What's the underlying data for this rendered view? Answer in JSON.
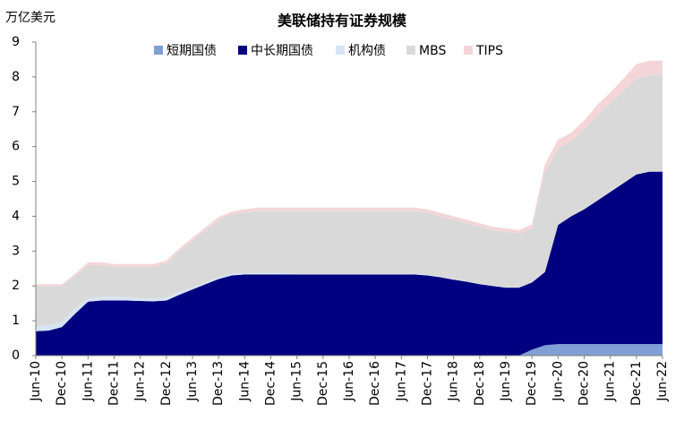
{
  "chart_data": {
    "type": "stacked-area",
    "title": "美联储持有证券规模",
    "y_label": "万亿美元",
    "categories": [
      "Jun-10",
      null,
      "Dec-10",
      null,
      "Jun-11",
      null,
      "Dec-11",
      null,
      "Jun-12",
      null,
      "Dec-12",
      null,
      "Jun-13",
      null,
      "Dec-13",
      null,
      "Jun-14",
      null,
      "Dec-14",
      null,
      "Jun-15",
      null,
      "Dec-15",
      null,
      "Jun-16",
      null,
      "Dec-16",
      null,
      "Jun-17",
      null,
      "Dec-17",
      null,
      "Jun-18",
      null,
      "Dec-18",
      null,
      "Jun-19",
      null,
      "Dec-19",
      null,
      "Jun-20",
      null,
      "Dec-20",
      null,
      "Jun-21",
      null,
      "Dec-21",
      null,
      "Jun-22"
    ],
    "series": [
      {
        "name": "短期国债",
        "color": "#7f9fd6",
        "values": [
          0,
          0,
          0,
          0,
          0,
          0,
          0,
          0,
          0,
          0,
          0,
          0,
          0,
          0,
          0,
          0,
          0,
          0,
          0,
          0,
          0,
          0,
          0,
          0,
          0,
          0,
          0,
          0,
          0,
          0,
          0,
          0,
          0,
          0,
          0,
          0,
          0,
          0,
          0.17,
          0.3,
          0.33,
          0.33,
          0.33,
          0.33,
          0.33,
          0.33,
          0.33,
          0.33,
          0.33
        ]
      },
      {
        "name": "中长期国债",
        "color": "#000080",
        "values": [
          0.7,
          0.72,
          0.82,
          1.2,
          1.55,
          1.58,
          1.58,
          1.58,
          1.57,
          1.56,
          1.58,
          1.75,
          1.9,
          2.05,
          2.2,
          2.3,
          2.33,
          2.33,
          2.33,
          2.33,
          2.33,
          2.33,
          2.33,
          2.33,
          2.33,
          2.33,
          2.33,
          2.33,
          2.33,
          2.33,
          2.3,
          2.25,
          2.18,
          2.12,
          2.05,
          2.0,
          1.95,
          1.95,
          1.93,
          2.1,
          3.42,
          3.67,
          3.87,
          4.12,
          4.37,
          4.62,
          4.87,
          4.95,
          4.95
        ]
      },
      {
        "name": "机构债",
        "color": "#d6e4f5",
        "values": [
          0.15,
          0.15,
          0.15,
          0.15,
          0.1,
          0.1,
          0.1,
          0.1,
          0.08,
          0.08,
          0.08,
          0.08,
          0.05,
          0.05,
          0.05,
          0.05,
          0.04,
          0.04,
          0.04,
          0.04,
          0.02,
          0.02,
          0.02,
          0.02,
          0.02,
          0.02,
          0.02,
          0.02,
          0.02,
          0.02,
          0.02,
          0.02,
          0.01,
          0.01,
          0.01,
          0.01,
          0.01,
          0.01,
          0.01,
          0.01,
          0.01,
          0.01,
          0.01,
          0.01,
          0.01,
          0.01,
          0.01,
          0.01,
          0.01
        ]
      },
      {
        "name": "MBS",
        "color": "#d9d9d9",
        "values": [
          1.15,
          1.13,
          1.03,
          0.95,
          0.95,
          0.92,
          0.87,
          0.87,
          0.9,
          0.91,
          0.99,
          1.17,
          1.35,
          1.5,
          1.65,
          1.7,
          1.73,
          1.78,
          1.78,
          1.78,
          1.8,
          1.8,
          1.8,
          1.8,
          1.8,
          1.8,
          1.8,
          1.8,
          1.8,
          1.8,
          1.78,
          1.73,
          1.71,
          1.67,
          1.64,
          1.59,
          1.59,
          1.54,
          1.54,
          2.89,
          2.19,
          2.14,
          2.29,
          2.44,
          2.54,
          2.64,
          2.74,
          2.76,
          2.76
        ]
      },
      {
        "name": "TIPS",
        "color": "#f4d6d8",
        "values": [
          0.05,
          0.05,
          0.05,
          0.05,
          0.08,
          0.08,
          0.08,
          0.08,
          0.08,
          0.08,
          0.08,
          0.08,
          0.08,
          0.08,
          0.08,
          0.08,
          0.1,
          0.1,
          0.1,
          0.1,
          0.1,
          0.1,
          0.1,
          0.1,
          0.1,
          0.1,
          0.1,
          0.1,
          0.1,
          0.1,
          0.1,
          0.1,
          0.1,
          0.1,
          0.1,
          0.1,
          0.1,
          0.1,
          0.12,
          0.2,
          0.25,
          0.25,
          0.25,
          0.3,
          0.3,
          0.35,
          0.42,
          0.42,
          0.42
        ]
      }
    ],
    "ylim": [
      0,
      9
    ],
    "yticks": [
      0,
      1,
      2,
      3,
      4,
      5,
      6,
      7,
      8,
      9
    ],
    "grid": false,
    "legend": "top"
  }
}
